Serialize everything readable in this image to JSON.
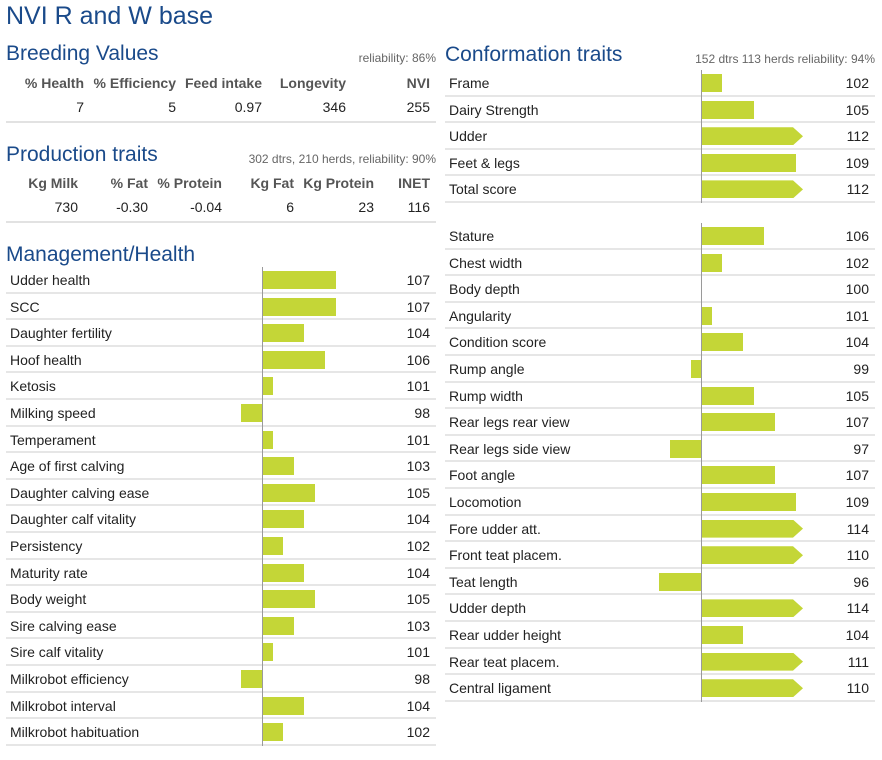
{
  "title": "NVI R and W base",
  "colors": {
    "heading": "#1a4a8a",
    "bar": "#c4d637"
  },
  "breeding": {
    "heading": "Breeding Values",
    "reliability": "reliability: 86%",
    "headers": [
      "% Health",
      "% Efficiency",
      "Feed intake",
      "Longevity",
      "NVI"
    ],
    "values": [
      "7",
      "5",
      "0.97",
      "346",
      "255"
    ]
  },
  "production": {
    "heading": "Production traits",
    "info": "302 dtrs, 210 herds, reliability: 90%",
    "headers": [
      "Kg Milk",
      "% Fat",
      "% Protein",
      "Kg Fat",
      "Kg Protein",
      "INET"
    ],
    "values": [
      "730",
      "-0.30",
      "-0.04",
      "6",
      "23",
      "116"
    ]
  },
  "management": {
    "heading": "Management/Health",
    "traits": [
      {
        "label": "Udder health",
        "value": 107
      },
      {
        "label": "SCC",
        "value": 107
      },
      {
        "label": "Daughter fertility",
        "value": 104
      },
      {
        "label": "Hoof health",
        "value": 106
      },
      {
        "label": "Ketosis",
        "value": 101
      },
      {
        "label": "Milking speed",
        "value": 98
      },
      {
        "label": "Temperament",
        "value": 101
      },
      {
        "label": "Age of first calving",
        "value": 103
      },
      {
        "label": "Daughter calving ease",
        "value": 105
      },
      {
        "label": "Daughter calf vitality",
        "value": 104
      },
      {
        "label": "Persistency",
        "value": 102
      },
      {
        "label": "Maturity rate",
        "value": 104
      },
      {
        "label": "Body weight",
        "value": 105
      },
      {
        "label": "Sire calving ease",
        "value": 103
      },
      {
        "label": "Sire calf vitality",
        "value": 101
      },
      {
        "label": "Milkrobot efficiency",
        "value": 98
      },
      {
        "label": "Milkrobot interval",
        "value": 104
      },
      {
        "label": "Milkrobot habituation",
        "value": 102
      }
    ]
  },
  "conformation": {
    "heading": "Conformation traits",
    "info": "152 dtrs 113 herds reliability: 94%",
    "summary": [
      {
        "label": "Frame",
        "value": 102
      },
      {
        "label": "Dairy Strength",
        "value": 105
      },
      {
        "label": "Udder",
        "value": 112
      },
      {
        "label": "Feet & legs",
        "value": 109
      },
      {
        "label": "Total score",
        "value": 112
      }
    ],
    "traits": [
      {
        "label": "Stature",
        "value": 106
      },
      {
        "label": "Chest width",
        "value": 102
      },
      {
        "label": "Body depth",
        "value": 100
      },
      {
        "label": "Angularity",
        "value": 101
      },
      {
        "label": "Condition score",
        "value": 104
      },
      {
        "label": "Rump angle",
        "value": 99
      },
      {
        "label": "Rump width",
        "value": 105
      },
      {
        "label": "Rear legs rear view",
        "value": 107
      },
      {
        "label": "Rear legs side view",
        "value": 97
      },
      {
        "label": "Foot angle",
        "value": 107
      },
      {
        "label": "Locomotion",
        "value": 109
      },
      {
        "label": "Fore udder att.",
        "value": 114
      },
      {
        "label": "Front teat placem.",
        "value": 110
      },
      {
        "label": "Teat length",
        "value": 96
      },
      {
        "label": "Udder depth",
        "value": 114
      },
      {
        "label": "Rear udder height",
        "value": 104
      },
      {
        "label": "Rear teat placem.",
        "value": 111
      },
      {
        "label": "Central ligament",
        "value": 110
      }
    ]
  }
}
